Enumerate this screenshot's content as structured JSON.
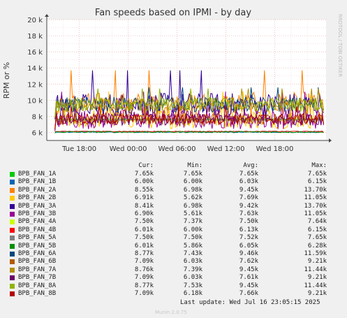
{
  "chart_data": {
    "type": "line",
    "title": "Fan speeds based on IPMI - by day",
    "ylabel": "RPM or %",
    "watermark": "RRDTOOL / TOBI OETIKER",
    "ylim": [
      5000,
      20000
    ],
    "yticks": [
      6000,
      8000,
      10000,
      12000,
      14000,
      16000,
      18000,
      20000
    ],
    "ytick_labels": [
      "6 k",
      "8 k",
      "10 k",
      "12 k",
      "14 k",
      "16 k",
      "18 k",
      "20 k"
    ],
    "xtick_labels": [
      "Tue 18:00",
      "Wed 00:00",
      "Wed 06:00",
      "Wed 12:00",
      "Wed 18:00"
    ],
    "x_range_hours": [
      -4.0,
      30.3
    ],
    "xtick_hours": [
      0,
      6,
      12,
      18,
      24
    ],
    "legend_headers": [
      "Cur:",
      "Min:",
      "Avg:",
      "Max:"
    ],
    "series": [
      {
        "name": "BPB_FAN_1A",
        "color": "#00cc00",
        "cur": "7.65k",
        "min": "7.65k",
        "avg": "7.65k",
        "max": "7.65k"
      },
      {
        "name": "BPB_FAN_1B",
        "color": "#0066b3",
        "cur": "6.00k",
        "min": "6.00k",
        "avg": "6.03k",
        "max": "6.15k"
      },
      {
        "name": "BPB_FAN_2A",
        "color": "#ff8000",
        "cur": "8.55k",
        "min": "6.98k",
        "avg": "9.45k",
        "max": "13.70k"
      },
      {
        "name": "BPB_FAN_2B",
        "color": "#ffcc00",
        "cur": "6.91k",
        "min": "5.62k",
        "avg": "7.69k",
        "max": "11.05k"
      },
      {
        "name": "BPB_FAN_3A",
        "color": "#330099",
        "cur": "8.41k",
        "min": "6.98k",
        "avg": "9.42k",
        "max": "13.70k"
      },
      {
        "name": "BPB_FAN_3B",
        "color": "#990099",
        "cur": "6.90k",
        "min": "5.61k",
        "avg": "7.63k",
        "max": "11.05k"
      },
      {
        "name": "BPB_FAN_4A",
        "color": "#ccff00",
        "cur": "7.50k",
        "min": "7.37k",
        "avg": "7.50k",
        "max": "7.64k"
      },
      {
        "name": "BPB_FAN_4B",
        "color": "#ff0000",
        "cur": "6.01k",
        "min": "6.00k",
        "avg": "6.13k",
        "max": "6.15k"
      },
      {
        "name": "BPB_FAN_5A",
        "color": "#808080",
        "cur": "7.50k",
        "min": "7.50k",
        "avg": "7.52k",
        "max": "7.65k"
      },
      {
        "name": "BPB_FAN_5B",
        "color": "#008f00",
        "cur": "6.01k",
        "min": "5.86k",
        "avg": "6.05k",
        "max": "6.28k"
      },
      {
        "name": "BPB_FAN_6A",
        "color": "#00487d",
        "cur": "8.77k",
        "min": "7.43k",
        "avg": "9.46k",
        "max": "11.59k"
      },
      {
        "name": "BPB_FAN_6B",
        "color": "#b35a00",
        "cur": "7.09k",
        "min": "6.03k",
        "avg": "7.62k",
        "max": "9.21k"
      },
      {
        "name": "BPB_FAN_7A",
        "color": "#b38f00",
        "cur": "8.76k",
        "min": "7.39k",
        "avg": "9.45k",
        "max": "11.44k"
      },
      {
        "name": "BPB_FAN_7B",
        "color": "#6b006b",
        "cur": "7.09k",
        "min": "6.03k",
        "avg": "7.61k",
        "max": "9.21k"
      },
      {
        "name": "BPB_FAN_8A",
        "color": "#8fb300",
        "cur": "8.77k",
        "min": "7.53k",
        "avg": "9.45k",
        "max": "11.44k"
      },
      {
        "name": "BPB_FAN_8B",
        "color": "#b30000",
        "cur": "7.09k",
        "min": "6.18k",
        "avg": "7.66k",
        "max": "9.21k"
      }
    ]
  },
  "last_update": "Last update: Wed Jul 16 23:05:15 2025",
  "munin_version": "Munin 2.0.75"
}
